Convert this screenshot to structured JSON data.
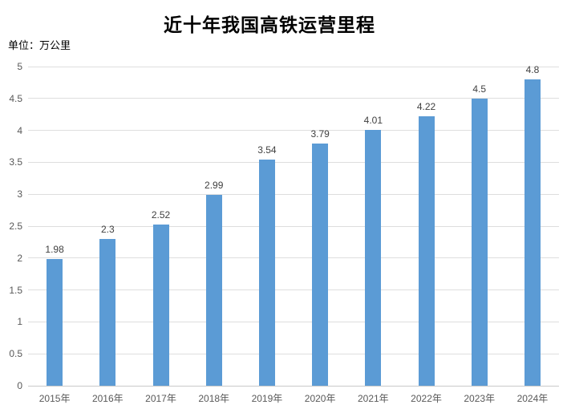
{
  "chart_data": {
    "type": "bar",
    "title": "近十年我国高铁运营里程",
    "unit_label": "单位：万公里",
    "categories": [
      "2015年",
      "2016年",
      "2017年",
      "2018年",
      "2019年",
      "2020年",
      "2021年",
      "2022年",
      "2023年",
      "2024年"
    ],
    "values": [
      1.98,
      2.3,
      2.52,
      2.99,
      3.54,
      3.79,
      4.01,
      4.22,
      4.5,
      4.8
    ],
    "value_labels": [
      "1.98",
      "2.3",
      "2.52",
      "2.99",
      "3.54",
      "3.79",
      "4.01",
      "4.22",
      "4.5",
      "4.8"
    ],
    "xlabel": "",
    "ylabel": "",
    "ylim": [
      0,
      5
    ],
    "y_tick_labels": [
      "0",
      "0.5",
      "1",
      "1.5",
      "2",
      "2.5",
      "3",
      "3.5",
      "4",
      "4.5",
      "5"
    ],
    "grid": "horizontal",
    "legend": "none",
    "colors": {
      "bar": "#5B9BD5",
      "gridline": "#DEDEDE",
      "axis_line": "#C9C9C9",
      "tick_label": "#595959",
      "data_label": "#404040",
      "title": "#000000"
    }
  }
}
